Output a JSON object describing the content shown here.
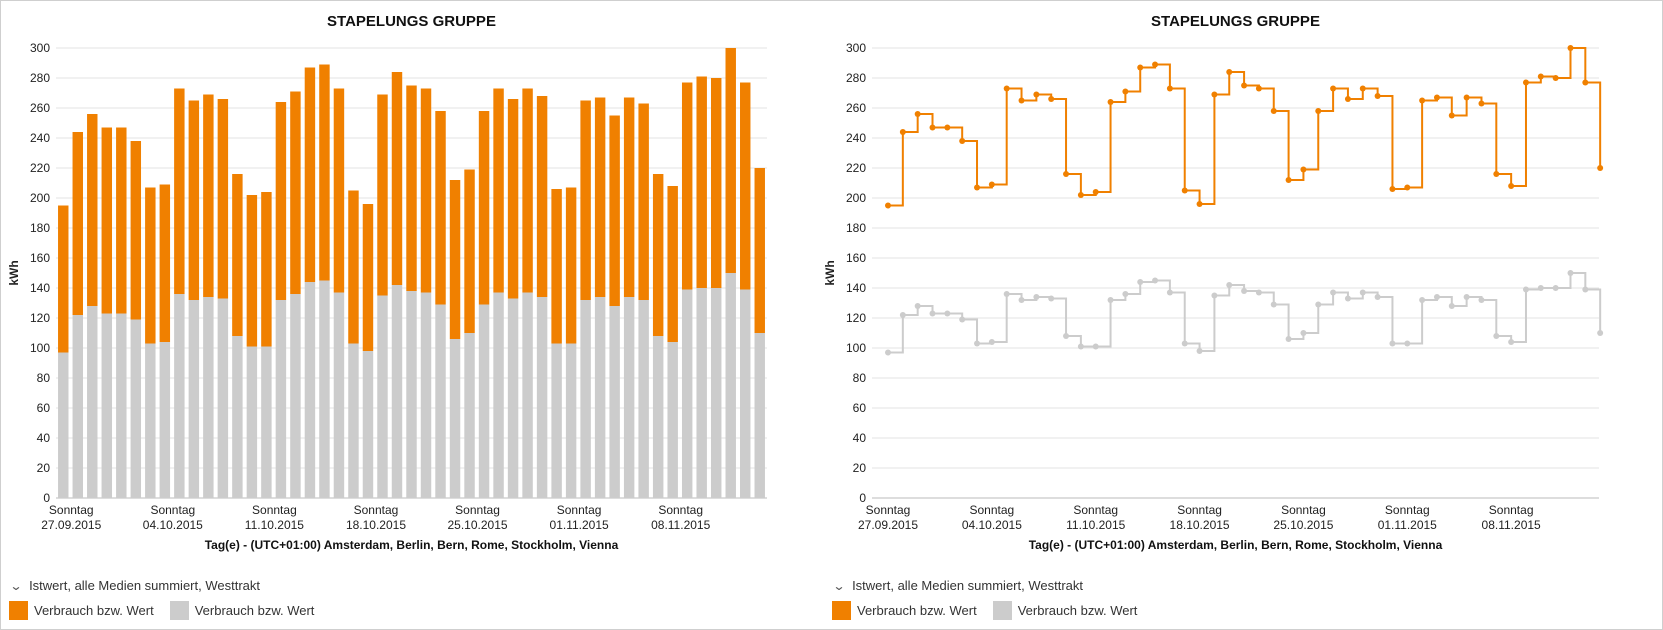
{
  "chart_data": [
    {
      "type": "bar",
      "stacked": true,
      "title": "STAPELUNGS GRUPPE",
      "ylabel": "kWh",
      "xlabel": "Tag(e) - (UTC+01:00) Amsterdam, Berlin, Bern, Rome, Stockholm, Vienna",
      "ylim": [
        0,
        300
      ],
      "yticks": [
        0,
        20,
        40,
        60,
        80,
        100,
        120,
        140,
        160,
        180,
        200,
        220,
        240,
        260,
        280,
        300
      ],
      "grid": true,
      "x_tick_labels": [
        [
          "Sonntag",
          "27.09.2015"
        ],
        [
          "Sonntag",
          "04.10.2015"
        ],
        [
          "Sonntag",
          "11.10.2015"
        ],
        [
          "Sonntag",
          "18.10.2015"
        ],
        [
          "Sonntag",
          "25.10.2015"
        ],
        [
          "Sonntag",
          "01.11.2015"
        ],
        [
          "Sonntag",
          "08.11.2015"
        ]
      ],
      "x_tick_label_every": 7,
      "series": [
        {
          "name": "Verbrauch bzw. Wert",
          "color": "#cccccc",
          "values": [
            97,
            122,
            128,
            123,
            123,
            119,
            103,
            104,
            136,
            132,
            134,
            133,
            108,
            101,
            101,
            132,
            136,
            144,
            145,
            137,
            103,
            98,
            135,
            142,
            138,
            137,
            129,
            106,
            110,
            129,
            137,
            133,
            137,
            134,
            103,
            103,
            132,
            134,
            128,
            134,
            132,
            108,
            104,
            139,
            140,
            140,
            150,
            139,
            110
          ]
        },
        {
          "name": "Verbrauch bzw. Wert",
          "color": "#f08000",
          "values": [
            98,
            122,
            128,
            124,
            124,
            119,
            104,
            105,
            137,
            133,
            135,
            133,
            108,
            101,
            103,
            132,
            135,
            143,
            144,
            136,
            102,
            98,
            134,
            142,
            137,
            136,
            129,
            106,
            109,
            129,
            136,
            133,
            136,
            134,
            103,
            104,
            133,
            133,
            127,
            133,
            131,
            108,
            104,
            138,
            141,
            140,
            150,
            138,
            110
          ]
        }
      ]
    },
    {
      "type": "line",
      "step": true,
      "title": "STAPELUNGS GRUPPE",
      "ylabel": "kWh",
      "xlabel": "Tag(e) - (UTC+01:00) Amsterdam, Berlin, Bern, Rome, Stockholm, Vienna",
      "ylim": [
        0,
        300
      ],
      "yticks": [
        0,
        20,
        40,
        60,
        80,
        100,
        120,
        140,
        160,
        180,
        200,
        220,
        240,
        260,
        280,
        300
      ],
      "grid": true,
      "x_tick_labels": [
        [
          "Sonntag",
          "27.09.2015"
        ],
        [
          "Sonntag",
          "04.10.2015"
        ],
        [
          "Sonntag",
          "11.10.2015"
        ],
        [
          "Sonntag",
          "18.10.2015"
        ],
        [
          "Sonntag",
          "25.10.2015"
        ],
        [
          "Sonntag",
          "01.11.2015"
        ],
        [
          "Sonntag",
          "08.11.2015"
        ]
      ],
      "x_tick_label_every": 7,
      "series": [
        {
          "name": "Verbrauch bzw. Wert",
          "color": "#cccccc",
          "values": [
            97,
            122,
            128,
            123,
            123,
            119,
            103,
            104,
            136,
            132,
            134,
            133,
            108,
            101,
            101,
            132,
            136,
            144,
            145,
            137,
            103,
            98,
            135,
            142,
            138,
            137,
            129,
            106,
            110,
            129,
            137,
            133,
            137,
            134,
            103,
            103,
            132,
            134,
            128,
            134,
            132,
            108,
            104,
            139,
            140,
            140,
            150,
            139,
            110
          ]
        },
        {
          "name": "Verbrauch bzw. Wert",
          "color": "#f08000",
          "values": [
            195,
            244,
            256,
            247,
            247,
            238,
            207,
            209,
            273,
            265,
            269,
            266,
            216,
            202,
            204,
            264,
            271,
            287,
            289,
            273,
            205,
            196,
            269,
            284,
            275,
            273,
            258,
            212,
            219,
            258,
            273,
            266,
            273,
            268,
            206,
            207,
            265,
            267,
            255,
            267,
            263,
            216,
            208,
            277,
            281,
            280,
            300,
            277,
            220
          ]
        }
      ]
    }
  ],
  "legend": {
    "group_label": "Istwert, alle Medien summiert, Westtrakt",
    "items": [
      {
        "label": "Verbrauch bzw. Wert",
        "color": "#f08000"
      },
      {
        "label": "Verbrauch bzw. Wert",
        "color": "#cccccc"
      }
    ]
  }
}
